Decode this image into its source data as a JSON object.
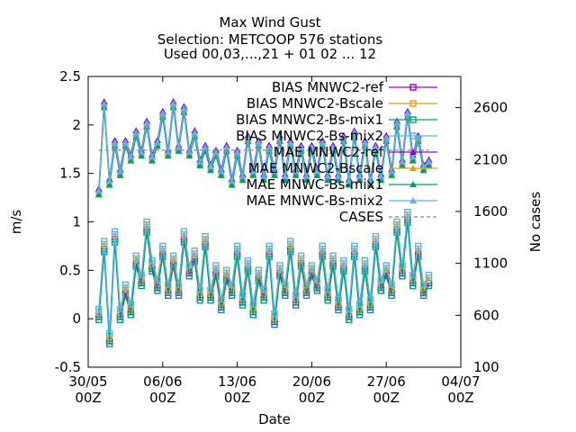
{
  "chart_data": {
    "type": "line",
    "title": [
      "Max Wind Gust",
      "Selection: METCOOP    576 stations",
      "Used 00,03,...,21 + 01 02 ... 12"
    ],
    "xlabel": "Date",
    "ylabel": "m/s",
    "y2label": "No cases",
    "xlim": [
      0,
      35
    ],
    "ylim": [
      -0.5,
      2.5
    ],
    "y2lim": [
      100,
      2900
    ],
    "x_ticks": [
      {
        "pos": 0,
        "label": [
          "30/05",
          "00Z"
        ]
      },
      {
        "pos": 7,
        "label": [
          "06/06",
          "00Z"
        ]
      },
      {
        "pos": 14,
        "label": [
          "13/06",
          "00Z"
        ]
      },
      {
        "pos": 21,
        "label": [
          "20/06",
          "00Z"
        ]
      },
      {
        "pos": 28,
        "label": [
          "27/06",
          "00Z"
        ]
      },
      {
        "pos": 35,
        "label": [
          "04/07",
          "00Z"
        ]
      }
    ],
    "y_ticks": [
      "-0.5",
      "0",
      "0.5",
      "1",
      "1.5",
      "2",
      "2.5"
    ],
    "y2_ticks": [
      "100",
      "600",
      "1100",
      "1600",
      "2100",
      "2600"
    ],
    "legend_position": "top-right",
    "series": [
      {
        "name": "BIAS MNWC2-ref",
        "color": "#9400d3",
        "marker": "square-open",
        "group": "bias",
        "offset": -0.03,
        "x": [
          1,
          1.5,
          2,
          2.5,
          3,
          3.5,
          4,
          4.5,
          5,
          5.5,
          6,
          6.5,
          7,
          7.5,
          8,
          8.5,
          9,
          9.5,
          10,
          10.5,
          11,
          11.5,
          12,
          12.5,
          13,
          13.5,
          14,
          14.5,
          15,
          15.5,
          16,
          16.5,
          17,
          17.5,
          18,
          18.5,
          19,
          19.5,
          20,
          20.5,
          21,
          21.5,
          22,
          22.5,
          23,
          23.5,
          24,
          24.5,
          25,
          25.5,
          26,
          26.5,
          27,
          27.5,
          28,
          28.5,
          29,
          29.5,
          30,
          30.5,
          31,
          31.5,
          32
        ],
        "y": [
          0.05,
          0.75,
          -0.2,
          0.85,
          0.05,
          0.3,
          0.1,
          0.6,
          0.4,
          0.95,
          0.55,
          0.35,
          0.7,
          0.3,
          0.6,
          0.3,
          0.85,
          0.5,
          0.65,
          0.25,
          0.8,
          0.25,
          0.5,
          0.15,
          0.45,
          0.3,
          0.7,
          0.2,
          0.55,
          0.1,
          0.45,
          0.25,
          0.7,
          0.0,
          0.5,
          0.3,
          0.75,
          0.2,
          0.6,
          0.3,
          0.5,
          0.35,
          0.7,
          0.25,
          0.6,
          0.15,
          0.55,
          0.05,
          0.7,
          0.1,
          0.55,
          0.15,
          0.8,
          0.35,
          0.5,
          0.3,
          0.95,
          0.5,
          1.05,
          0.4,
          0.7,
          0.3,
          0.4
        ]
      },
      {
        "name": "BIAS MNWC2-Bscale",
        "color": "#e69f00",
        "marker": "square-open",
        "group": "bias",
        "offset": 0.02,
        "x": [
          1,
          1.5,
          2,
          2.5,
          3,
          3.5,
          4,
          4.5,
          5,
          5.5,
          6,
          6.5,
          7,
          7.5,
          8,
          8.5,
          9,
          9.5,
          10,
          10.5,
          11,
          11.5,
          12,
          12.5,
          13,
          13.5,
          14,
          14.5,
          15,
          15.5,
          16,
          16.5,
          17,
          17.5,
          18,
          18.5,
          19,
          19.5,
          20,
          20.5,
          21,
          21.5,
          22,
          22.5,
          23,
          23.5,
          24,
          24.5,
          25,
          25.5,
          26,
          26.5,
          27,
          27.5,
          28,
          28.5,
          29,
          29.5,
          30,
          30.5,
          31,
          31.5,
          32
        ],
        "y": [
          0.05,
          0.75,
          -0.2,
          0.85,
          0.05,
          0.3,
          0.1,
          0.6,
          0.4,
          0.95,
          0.55,
          0.35,
          0.7,
          0.3,
          0.6,
          0.3,
          0.85,
          0.5,
          0.65,
          0.25,
          0.8,
          0.25,
          0.5,
          0.15,
          0.45,
          0.3,
          0.7,
          0.2,
          0.55,
          0.1,
          0.45,
          0.25,
          0.7,
          0.0,
          0.5,
          0.3,
          0.75,
          0.2,
          0.6,
          0.3,
          0.5,
          0.35,
          0.7,
          0.25,
          0.6,
          0.15,
          0.55,
          0.05,
          0.7,
          0.1,
          0.55,
          0.15,
          0.8,
          0.35,
          0.5,
          0.3,
          0.95,
          0.5,
          1.05,
          0.4,
          0.7,
          0.3,
          0.4
        ]
      },
      {
        "name": "BIAS MNWC2-Bs-mix1",
        "color": "#009e73",
        "marker": "square-open",
        "group": "bias",
        "offset": -0.06,
        "x": [
          1,
          1.5,
          2,
          2.5,
          3,
          3.5,
          4,
          4.5,
          5,
          5.5,
          6,
          6.5,
          7,
          7.5,
          8,
          8.5,
          9,
          9.5,
          10,
          10.5,
          11,
          11.5,
          12,
          12.5,
          13,
          13.5,
          14,
          14.5,
          15,
          15.5,
          16,
          16.5,
          17,
          17.5,
          18,
          18.5,
          19,
          19.5,
          20,
          20.5,
          21,
          21.5,
          22,
          22.5,
          23,
          23.5,
          24,
          24.5,
          25,
          25.5,
          26,
          26.5,
          27,
          27.5,
          28,
          28.5,
          29,
          29.5,
          30,
          30.5,
          31,
          31.5,
          32
        ],
        "y": [
          0.05,
          0.75,
          -0.2,
          0.85,
          0.05,
          0.3,
          0.1,
          0.6,
          0.4,
          0.95,
          0.55,
          0.35,
          0.7,
          0.3,
          0.6,
          0.3,
          0.85,
          0.5,
          0.65,
          0.25,
          0.8,
          0.25,
          0.5,
          0.15,
          0.45,
          0.3,
          0.7,
          0.2,
          0.55,
          0.1,
          0.45,
          0.25,
          0.7,
          0.0,
          0.5,
          0.3,
          0.75,
          0.2,
          0.6,
          0.3,
          0.5,
          0.35,
          0.7,
          0.25,
          0.6,
          0.15,
          0.55,
          0.05,
          0.7,
          0.1,
          0.55,
          0.15,
          0.8,
          0.35,
          0.5,
          0.3,
          0.95,
          0.5,
          1.05,
          0.4,
          0.7,
          0.3,
          0.4
        ]
      },
      {
        "name": "BIAS MNWC2-Bs-mix2",
        "color": "#56b4e9",
        "marker": "square-open",
        "group": "bias",
        "offset": 0.05,
        "x": [
          1,
          1.5,
          2,
          2.5,
          3,
          3.5,
          4,
          4.5,
          5,
          5.5,
          6,
          6.5,
          7,
          7.5,
          8,
          8.5,
          9,
          9.5,
          10,
          10.5,
          11,
          11.5,
          12,
          12.5,
          13,
          13.5,
          14,
          14.5,
          15,
          15.5,
          16,
          16.5,
          17,
          17.5,
          18,
          18.5,
          19,
          19.5,
          20,
          20.5,
          21,
          21.5,
          22,
          22.5,
          23,
          23.5,
          24,
          24.5,
          25,
          25.5,
          26,
          26.5,
          27,
          27.5,
          28,
          28.5,
          29,
          29.5,
          30,
          30.5,
          31,
          31.5,
          32
        ],
        "y": [
          0.05,
          0.75,
          -0.2,
          0.85,
          0.05,
          0.3,
          0.1,
          0.6,
          0.4,
          0.95,
          0.55,
          0.35,
          0.7,
          0.3,
          0.6,
          0.3,
          0.85,
          0.5,
          0.65,
          0.25,
          0.8,
          0.25,
          0.5,
          0.15,
          0.45,
          0.3,
          0.7,
          0.2,
          0.55,
          0.1,
          0.45,
          0.25,
          0.7,
          0.0,
          0.5,
          0.3,
          0.75,
          0.2,
          0.6,
          0.3,
          0.5,
          0.35,
          0.7,
          0.25,
          0.6,
          0.15,
          0.55,
          0.05,
          0.7,
          0.1,
          0.55,
          0.15,
          0.8,
          0.35,
          0.5,
          0.3,
          0.95,
          0.5,
          1.05,
          0.4,
          0.7,
          0.3,
          0.4
        ]
      },
      {
        "name": "MAE MNWC2-ref",
        "color": "#9400d3",
        "marker": "triangle",
        "group": "mae",
        "offset": 0.04,
        "x": [
          1,
          1.5,
          2,
          2.5,
          3,
          3.5,
          4,
          4.5,
          5,
          5.5,
          6,
          6.5,
          7,
          7.5,
          8,
          8.5,
          9,
          9.5,
          10,
          10.5,
          11,
          11.5,
          12,
          12.5,
          13,
          13.5,
          14,
          14.5,
          15,
          15.5,
          16,
          16.5,
          17,
          17.5,
          18,
          18.5,
          19,
          19.5,
          20,
          20.5,
          21,
          21.5,
          22,
          22.5,
          23,
          23.5,
          24,
          24.5,
          25,
          25.5,
          26,
          26.5,
          27,
          27.5,
          28,
          28.5,
          29,
          29.5,
          30,
          30.5,
          31,
          31.5,
          32
        ],
        "y": [
          1.3,
          2.2,
          1.4,
          1.8,
          1.5,
          1.8,
          1.65,
          1.9,
          1.7,
          2.0,
          1.65,
          1.8,
          2.1,
          1.7,
          2.2,
          1.75,
          2.15,
          1.7,
          1.9,
          1.6,
          1.75,
          1.55,
          1.7,
          1.5,
          1.75,
          1.4,
          1.7,
          1.45,
          1.85,
          1.5,
          1.8,
          1.45,
          1.75,
          1.5,
          1.85,
          1.45,
          1.8,
          1.5,
          1.75,
          1.45,
          1.75,
          1.5,
          1.8,
          1.45,
          1.75,
          1.45,
          1.85,
          1.4,
          1.9,
          1.45,
          1.8,
          1.4,
          1.75,
          1.45,
          1.85,
          1.5,
          2.0,
          1.6,
          2.1,
          1.65,
          1.85,
          1.55,
          1.6
        ]
      },
      {
        "name": "MAE MNWC2-Bscale",
        "color": "#e69f00",
        "marker": "triangle",
        "group": "mae",
        "offset": 0.0,
        "x": [
          1,
          1.5,
          2,
          2.5,
          3,
          3.5,
          4,
          4.5,
          5,
          5.5,
          6,
          6.5,
          7,
          7.5,
          8,
          8.5,
          9,
          9.5,
          10,
          10.5,
          11,
          11.5,
          12,
          12.5,
          13,
          13.5,
          14,
          14.5,
          15,
          15.5,
          16,
          16.5,
          17,
          17.5,
          18,
          18.5,
          19,
          19.5,
          20,
          20.5,
          21,
          21.5,
          22,
          22.5,
          23,
          23.5,
          24,
          24.5,
          25,
          25.5,
          26,
          26.5,
          27,
          27.5,
          28,
          28.5,
          29,
          29.5,
          30,
          30.5,
          31,
          31.5,
          32
        ],
        "y": [
          1.3,
          2.2,
          1.4,
          1.8,
          1.5,
          1.8,
          1.65,
          1.9,
          1.7,
          2.0,
          1.65,
          1.8,
          2.1,
          1.7,
          2.2,
          1.75,
          2.15,
          1.7,
          1.9,
          1.6,
          1.75,
          1.55,
          1.7,
          1.5,
          1.75,
          1.4,
          1.7,
          1.45,
          1.85,
          1.5,
          1.8,
          1.45,
          1.75,
          1.5,
          1.85,
          1.45,
          1.8,
          1.5,
          1.75,
          1.45,
          1.75,
          1.5,
          1.8,
          1.45,
          1.75,
          1.45,
          1.85,
          1.4,
          1.9,
          1.45,
          1.8,
          1.4,
          1.75,
          1.45,
          1.85,
          1.5,
          2.0,
          1.6,
          2.1,
          1.65,
          1.85,
          1.55,
          1.6
        ]
      },
      {
        "name": "MAE MNWC-Bs-mix1",
        "color": "#009e73",
        "marker": "triangle",
        "group": "mae",
        "offset": -0.02,
        "x": [
          1,
          1.5,
          2,
          2.5,
          3,
          3.5,
          4,
          4.5,
          5,
          5.5,
          6,
          6.5,
          7,
          7.5,
          8,
          8.5,
          9,
          9.5,
          10,
          10.5,
          11,
          11.5,
          12,
          12.5,
          13,
          13.5,
          14,
          14.5,
          15,
          15.5,
          16,
          16.5,
          17,
          17.5,
          18,
          18.5,
          19,
          19.5,
          20,
          20.5,
          21,
          21.5,
          22,
          22.5,
          23,
          23.5,
          24,
          24.5,
          25,
          25.5,
          26,
          26.5,
          27,
          27.5,
          28,
          28.5,
          29,
          29.5,
          30,
          30.5,
          31,
          31.5,
          32
        ],
        "y": [
          1.3,
          2.2,
          1.4,
          1.8,
          1.5,
          1.8,
          1.65,
          1.9,
          1.7,
          2.0,
          1.65,
          1.8,
          2.1,
          1.7,
          2.2,
          1.75,
          2.15,
          1.7,
          1.9,
          1.6,
          1.75,
          1.55,
          1.7,
          1.5,
          1.75,
          1.4,
          1.7,
          1.45,
          1.85,
          1.5,
          1.8,
          1.45,
          1.75,
          1.5,
          1.85,
          1.45,
          1.8,
          1.5,
          1.75,
          1.45,
          1.75,
          1.5,
          1.8,
          1.45,
          1.75,
          1.45,
          1.85,
          1.4,
          1.9,
          1.45,
          1.8,
          1.4,
          1.75,
          1.45,
          1.85,
          1.5,
          2.0,
          1.6,
          2.1,
          1.65,
          1.85,
          1.55,
          1.6
        ]
      },
      {
        "name": "MAE MNWC-Bs-mix2",
        "color": "#56b4e9",
        "marker": "triangle",
        "group": "mae",
        "offset": 0.02,
        "x": [
          1,
          1.5,
          2,
          2.5,
          3,
          3.5,
          4,
          4.5,
          5,
          5.5,
          6,
          6.5,
          7,
          7.5,
          8,
          8.5,
          9,
          9.5,
          10,
          10.5,
          11,
          11.5,
          12,
          12.5,
          13,
          13.5,
          14,
          14.5,
          15,
          15.5,
          16,
          16.5,
          17,
          17.5,
          18,
          18.5,
          19,
          19.5,
          20,
          20.5,
          21,
          21.5,
          22,
          22.5,
          23,
          23.5,
          24,
          24.5,
          25,
          25.5,
          26,
          26.5,
          27,
          27.5,
          28,
          28.5,
          29,
          29.5,
          30,
          30.5,
          31,
          31.5,
          32
        ],
        "y": [
          1.3,
          2.2,
          1.4,
          1.8,
          1.5,
          1.8,
          1.65,
          1.9,
          1.7,
          2.0,
          1.65,
          1.8,
          2.1,
          1.7,
          2.2,
          1.75,
          2.15,
          1.7,
          1.9,
          1.6,
          1.75,
          1.55,
          1.7,
          1.5,
          1.75,
          1.4,
          1.7,
          1.45,
          1.85,
          1.5,
          1.8,
          1.45,
          1.75,
          1.5,
          1.85,
          1.45,
          1.8,
          1.5,
          1.75,
          1.45,
          1.75,
          1.5,
          1.8,
          1.45,
          1.75,
          1.45,
          1.85,
          1.4,
          1.9,
          1.45,
          1.8,
          1.4,
          1.75,
          1.45,
          1.85,
          1.5,
          2.0,
          1.6,
          2.1,
          1.65,
          1.85,
          1.55,
          1.6
        ]
      },
      {
        "name": "CASES",
        "color": "#888888",
        "marker": "none",
        "dashed": true,
        "axis": "y2",
        "offset": 0,
        "x": [
          1,
          32
        ],
        "y": [
          2190,
          2190
        ]
      }
    ],
    "legend_display_names": [
      "BIAS MNWC2-ref",
      "BIAS MNWC2-Bscale",
      "BIAS MNWC2-Bs-mix1",
      "BIAS MNWC2-Bs-mix2",
      "MAE MNWC2-ref",
      "MAE MNWC2-Bscale",
      "MAE MNWC-Bs-mix1",
      "MAE MNWC-Bs-mix2",
      "CASES"
    ]
  }
}
